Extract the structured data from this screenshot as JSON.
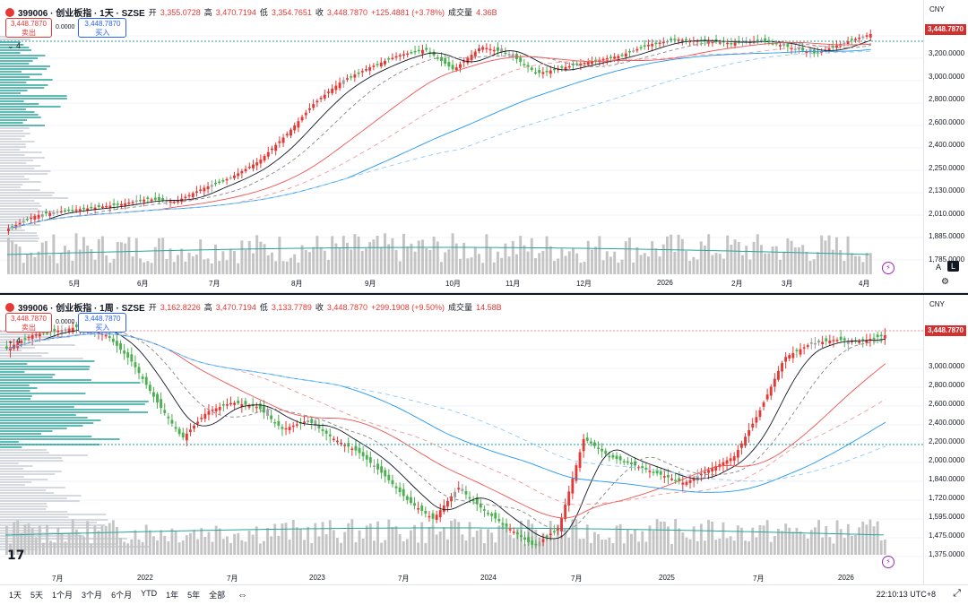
{
  "top": {
    "symbol": "399006 · 创业板指 · 1天 · SZSE",
    "open_label": "开",
    "open": "3,355.0728",
    "high_label": "高",
    "high": "3,470.7194",
    "low_label": "低",
    "low": "3,354.7651",
    "close_label": "收",
    "close": "3,448.7870",
    "change": "+125.4881 (+3.78%)",
    "vol_label": "成交量",
    "volume": "4.36B",
    "sell_price": "3,448.7870",
    "sell_label": "卖出",
    "spread": "0.0000",
    "buy_price": "3,448.7870",
    "buy_label": "买入",
    "collapse": "4",
    "currency": "CNY",
    "price_tag": "3,448.7870",
    "y_labels": [
      "3,200.0000",
      "3,000.0000",
      "2,800.0000",
      "2,600.0000",
      "2,400.0000",
      "2,250.0000",
      "2,130.0000",
      "2,010.0000",
      "1,885.0000",
      "1,785.0000"
    ],
    "x_labels": [
      "5月",
      "6月",
      "7月",
      "8月",
      "9月",
      "10月",
      "11月",
      "12月",
      "2026",
      "2月",
      "3月",
      "4月"
    ],
    "scale_a": "A",
    "scale_l": "L"
  },
  "bottom": {
    "symbol": "399006 · 创业板指 · 1周 · SZSE",
    "open_label": "开",
    "open": "3,162.8226",
    "high_label": "高",
    "high": "3,470.7194",
    "low_label": "低",
    "low": "3,133.7789",
    "close_label": "收",
    "close": "3,448.7870",
    "change": "+299.1908 (+9.50%)",
    "vol_label": "成交量",
    "volume": "14.58B",
    "sell_price": "3,448.7870",
    "sell_label": "卖出",
    "spread": "0.0000",
    "buy_price": "3,448.7870",
    "buy_label": "买入",
    "collapse": "4",
    "currency": "CNY",
    "price_tag": "3,448.7870",
    "y_labels": [
      "3,000.0000",
      "2,800.0000",
      "2,600.0000",
      "2,400.0000",
      "2,200.0000",
      "2,000.0000",
      "1,840.0000",
      "1,720.0000",
      "1,595.0000",
      "1,475.0000",
      "1,375.0000"
    ],
    "x_labels": [
      "7月",
      "2022",
      "7月",
      "2023",
      "7月",
      "2024",
      "7月",
      "2025",
      "7月",
      "2026"
    ]
  },
  "timeframes": [
    "1天",
    "5天",
    "1个月",
    "3个月",
    "6个月",
    "YTD",
    "1年",
    "5年",
    "全部"
  ],
  "clock": "22:10:13 UTC+8",
  "colors": {
    "up": "#e53935",
    "down": "#4caf50",
    "neutral": "#9e9e9e",
    "profile": "#26a69a",
    "ma_black": "#131722",
    "ma_red": "#ef5350",
    "ma_blue": "#2196f3"
  },
  "chart_data": [
    {
      "type": "candlestick",
      "title": "399006 · 创业板指 · 1天 · SZSE",
      "categories": [
        "5月",
        "6月",
        "7月",
        "8月",
        "9月",
        "10月",
        "11月",
        "12月",
        "2026",
        "2月",
        "3月",
        "4月"
      ],
      "approx_close": [
        2000,
        2050,
        2090,
        2300,
        2700,
        3150,
        3200,
        3050,
        3300,
        3300,
        3280,
        3449
      ],
      "ylim": [
        1700,
        3500
      ]
    },
    {
      "type": "candlestick",
      "title": "399006 · 创业板指 · 1周 · SZSE",
      "categories": [
        "7月",
        "2022",
        "7月",
        "2023",
        "7月",
        "2024",
        "7月",
        "2025",
        "7月",
        "2026"
      ],
      "approx_close": [
        3100,
        3350,
        2650,
        2500,
        2150,
        1800,
        1600,
        2100,
        2200,
        3449
      ],
      "ylim": [
        1350,
        3600
      ]
    }
  ]
}
